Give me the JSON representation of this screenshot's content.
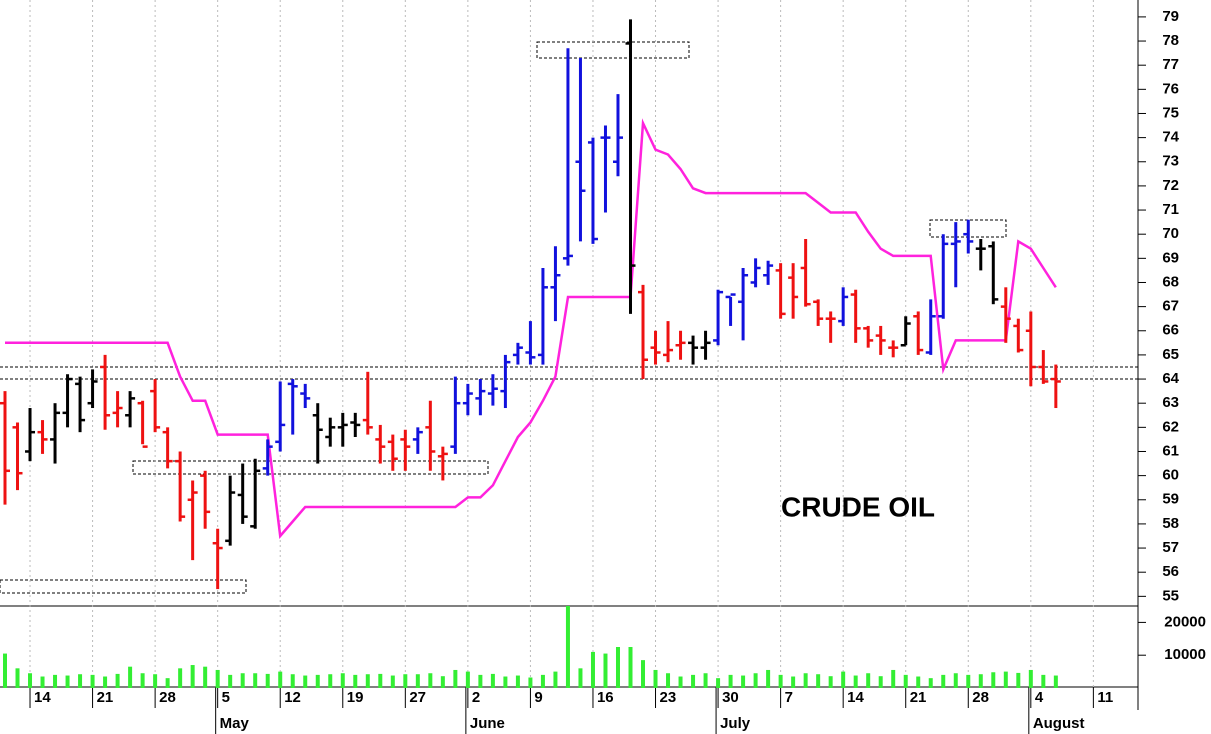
{
  "chart_data": [
    {
      "type": "ohlc",
      "annotation": "CRUDE OIL",
      "categories": [
        null,
        null,
        "14",
        null,
        null,
        null,
        null,
        "21",
        null,
        null,
        null,
        null,
        "28",
        null,
        null,
        null,
        null,
        "5",
        null,
        null,
        null,
        null,
        "12",
        null,
        null,
        null,
        null,
        "19",
        null,
        null,
        null,
        null,
        "27",
        null,
        null,
        null,
        null,
        "2",
        null,
        null,
        null,
        null,
        "9",
        null,
        null,
        null,
        null,
        "16",
        null,
        null,
        null,
        null,
        "23",
        null,
        null,
        null,
        null,
        "30",
        null,
        null,
        null,
        null,
        "7",
        null,
        null,
        null,
        null,
        "14",
        null,
        null,
        null,
        null,
        "21",
        null,
        null,
        null,
        null,
        "28",
        null,
        null,
        null,
        null,
        "4",
        null,
        null,
        null,
        null,
        "11"
      ],
      "month_labels": [
        null,
        null,
        null,
        null,
        null,
        null,
        null,
        null,
        null,
        null,
        null,
        null,
        null,
        null,
        null,
        null,
        null,
        "May",
        null,
        null,
        null,
        null,
        null,
        null,
        null,
        null,
        null,
        null,
        null,
        null,
        null,
        null,
        null,
        null,
        null,
        null,
        null,
        "June",
        null,
        null,
        null,
        null,
        null,
        null,
        null,
        null,
        null,
        null,
        null,
        null,
        null,
        null,
        null,
        null,
        null,
        null,
        null,
        "July",
        null,
        null,
        null,
        null,
        null,
        null,
        null,
        null,
        null,
        null,
        null,
        null,
        null,
        null,
        null,
        null,
        null,
        null,
        null,
        null,
        null,
        null,
        null,
        null,
        "August",
        null,
        null,
        null,
        null,
        null
      ],
      "open": [
        63,
        62,
        61,
        61.8,
        61.5,
        62.6,
        63.8,
        63,
        64.5,
        62.6,
        62.5,
        63,
        63.5,
        61.8,
        60.6,
        59,
        60,
        57.2,
        57.3,
        59.2,
        57.9,
        60.3,
        61.4,
        63.8,
        63.4,
        62.5,
        61.6,
        62,
        62.2,
        62.3,
        61.5,
        61.4,
        61.5,
        61.5,
        62,
        60.8,
        61.2,
        63,
        63.2,
        63.4,
        63.5,
        65,
        65.1,
        65,
        67.8,
        69,
        73,
        73.8,
        74,
        73,
        77.9,
        67.6,
        65.3,
        65,
        65.4,
        65.5,
        65.3,
        65.6,
        67.4,
        67.2,
        68,
        68.3,
        68.5,
        68.2,
        68.6,
        67.2,
        66.5,
        66.4,
        67.5,
        66.1,
        65.8,
        65.3,
        65.4,
        66.6,
        65.1,
        66.6,
        69.6,
        70,
        69.4,
        69.5,
        67,
        66.2,
        66,
        64.5,
        64,
        null,
        null,
        null
      ],
      "high": [
        63.5,
        62.2,
        62.8,
        62.3,
        63,
        64.2,
        64.1,
        64.4,
        65,
        63.5,
        63.5,
        63.1,
        64,
        62,
        61,
        59.8,
        60.2,
        57.8,
        60,
        60.5,
        60.7,
        61.5,
        63.9,
        64,
        63.8,
        63,
        62.4,
        62.6,
        62.6,
        64.3,
        62.1,
        61.7,
        61.9,
        62,
        63.1,
        61.2,
        64.1,
        63.8,
        64,
        64.2,
        65,
        65.5,
        66.4,
        68.6,
        69.5,
        77.7,
        77.3,
        74,
        74.5,
        75.8,
        78.9,
        67.9,
        66,
        66.4,
        66,
        65.8,
        66,
        67.7,
        67.4,
        68.6,
        69,
        68.9,
        68.8,
        68.8,
        69.8,
        67.3,
        66.8,
        67.8,
        67.7,
        66.2,
        66.2,
        65.6,
        66.6,
        66.8,
        67.3,
        70,
        70.5,
        70.6,
        69.8,
        69.7,
        67.8,
        66.5,
        66.8,
        65.2,
        64.6,
        null,
        null,
        null
      ],
      "low": [
        58.8,
        59.4,
        60.6,
        60.9,
        60.5,
        62,
        61.8,
        62.8,
        61.9,
        62,
        62,
        61.3,
        61.8,
        60.3,
        58.1,
        56.5,
        57.8,
        55.3,
        57.1,
        58,
        57.8,
        60,
        61,
        61.7,
        62.8,
        60.5,
        61.2,
        61.2,
        61.6,
        61.7,
        60.5,
        60.2,
        60.2,
        60.9,
        60.2,
        59.8,
        60.9,
        62.5,
        62.5,
        62.9,
        62.8,
        64.6,
        64.6,
        64.6,
        66.4,
        68.7,
        69.7,
        69.6,
        70.9,
        72.4,
        66.7,
        64,
        64.6,
        64.7,
        64.8,
        64.6,
        64.8,
        65.4,
        66.2,
        65.6,
        67.8,
        67.9,
        66.5,
        66.5,
        67,
        66.2,
        65.5,
        66.2,
        65.5,
        65.3,
        65,
        64.9,
        65.4,
        65,
        65,
        66.5,
        67.8,
        69.2,
        68.5,
        67.1,
        65.5,
        65.1,
        63.7,
        63.8,
        62.8,
        null,
        null,
        null
      ],
      "close": [
        60.2,
        60.1,
        61.8,
        61.5,
        62.6,
        64,
        62.3,
        63.9,
        62.5,
        62.8,
        63.2,
        61.2,
        62,
        60.6,
        58.3,
        59.3,
        58.5,
        57,
        59.3,
        58.3,
        60.2,
        61.2,
        62.1,
        63.7,
        63.2,
        61.9,
        62,
        62.1,
        62.1,
        62,
        61.2,
        60.7,
        61.2,
        61.8,
        61,
        60.9,
        63,
        63.4,
        63.5,
        63.6,
        64.7,
        65.3,
        64.9,
        67.8,
        68.3,
        69.1,
        71.8,
        69.8,
        74,
        74,
        68.7,
        64.8,
        65.1,
        65.2,
        65.5,
        65.3,
        65.5,
        67.6,
        67.5,
        68.3,
        68.6,
        68.7,
        66.7,
        67.4,
        67.1,
        66.5,
        66.5,
        67.4,
        66.1,
        65.6,
        65.6,
        65.3,
        66.3,
        65.2,
        66.6,
        69.6,
        69.7,
        69.7,
        69.4,
        67.3,
        66.5,
        65.2,
        64.5,
        63.9,
        63.9,
        null,
        null,
        null
      ],
      "colors": [
        "#ee1111",
        "#ee1111",
        "#000000",
        "#ee1111",
        "#000000",
        "#000000",
        "#000000",
        "#000000",
        "#ee1111",
        "#ee1111",
        "#000000",
        "#ee1111",
        "#ee1111",
        "#ee1111",
        "#ee1111",
        "#ee1111",
        "#ee1111",
        "#ee1111",
        "#000000",
        "#000000",
        "#000000",
        "#1111dd",
        "#1111dd",
        "#1111dd",
        "#1111dd",
        "#000000",
        "#000000",
        "#000000",
        "#000000",
        "#ee1111",
        "#ee1111",
        "#ee1111",
        "#ee1111",
        "#1111dd",
        "#ee1111",
        "#ee1111",
        "#1111dd",
        "#1111dd",
        "#1111dd",
        "#1111dd",
        "#1111dd",
        "#1111dd",
        "#1111dd",
        "#1111dd",
        "#1111dd",
        "#1111dd",
        "#1111dd",
        "#1111dd",
        "#1111dd",
        "#1111dd",
        "#000000",
        "#ee1111",
        "#ee1111",
        "#ee1111",
        "#ee1111",
        "#000000",
        "#000000",
        "#1111dd",
        "#1111dd",
        "#1111dd",
        "#1111dd",
        "#1111dd",
        "#ee1111",
        "#ee1111",
        "#ee1111",
        "#ee1111",
        "#ee1111",
        "#1111dd",
        "#ee1111",
        "#ee1111",
        "#ee1111",
        "#ee1111",
        "#000000",
        "#ee1111",
        "#1111dd",
        "#1111dd",
        "#1111dd",
        "#1111dd",
        "#000000",
        "#000000",
        "#ee1111",
        "#ee1111",
        "#ee1111",
        "#ee1111",
        "#ee1111",
        null,
        null,
        null
      ],
      "stop_line": {
        "color": "#ff22dd",
        "values": [
          65.5,
          65.5,
          65.5,
          65.5,
          65.5,
          65.5,
          65.5,
          65.5,
          65.5,
          65.5,
          65.5,
          65.5,
          65.5,
          65.5,
          64.1,
          63.1,
          63.1,
          61.7,
          61.7,
          61.7,
          61.7,
          61.7,
          57.5,
          58.1,
          58.7,
          58.7,
          58.7,
          58.7,
          58.7,
          58.7,
          58.7,
          58.7,
          58.7,
          58.7,
          58.7,
          58.7,
          58.7,
          59.1,
          59.1,
          59.6,
          60.6,
          61.6,
          62.2,
          63.1,
          64.1,
          67.4,
          67.4,
          67.4,
          67.4,
          67.4,
          67.4,
          74.6,
          73.5,
          73.3,
          72.7,
          71.9,
          71.7,
          71.7,
          71.7,
          71.7,
          71.7,
          71.7,
          71.7,
          71.7,
          71.7,
          71.3,
          70.9,
          70.9,
          70.9,
          70.1,
          69.4,
          69.1,
          69.1,
          69.1,
          69.1,
          64.4,
          65.6,
          65.6,
          65.6,
          65.6,
          65.6,
          69.7,
          69.4,
          68.6,
          67.8,
          null,
          null,
          null
        ]
      },
      "reference_lines": [
        64.5,
        64
      ],
      "ylim": [
        54.6,
        79.7
      ],
      "yticks": [
        55,
        56,
        57,
        58,
        59,
        60,
        61,
        62,
        63,
        64,
        65,
        66,
        67,
        68,
        69,
        70,
        71,
        72,
        73,
        74,
        75,
        76,
        77,
        78,
        79
      ],
      "grid": true
    },
    {
      "type": "bar",
      "color": "#33ee33",
      "values": [
        10500,
        6000,
        4500,
        3500,
        4000,
        3800,
        4200,
        4000,
        3500,
        4300,
        6500,
        4500,
        4200,
        3000,
        6000,
        7000,
        6500,
        5500,
        4000,
        4500,
        4500,
        4300,
        5000,
        4200,
        3800,
        4000,
        4200,
        4500,
        4000,
        4200,
        4300,
        3800,
        4200,
        4200,
        4500,
        3600,
        5500,
        5000,
        4000,
        4300,
        3500,
        3800,
        3200,
        4000,
        5000,
        25000,
        6000,
        11000,
        10500,
        12500,
        12500,
        8500,
        5500,
        4500,
        3500,
        4000,
        4500,
        3000,
        4000,
        3800,
        4500,
        5500,
        4000,
        3500,
        4500,
        4200,
        3600,
        5000,
        3800,
        4500,
        3600,
        5500,
        4000,
        3500,
        3000,
        4000,
        4500,
        4000,
        4200,
        4800,
        5000,
        4600,
        5500,
        4000,
        3800,
        null,
        null,
        null
      ],
      "ylim": [
        0,
        25000
      ],
      "yticks": [
        10000,
        20000
      ]
    }
  ]
}
